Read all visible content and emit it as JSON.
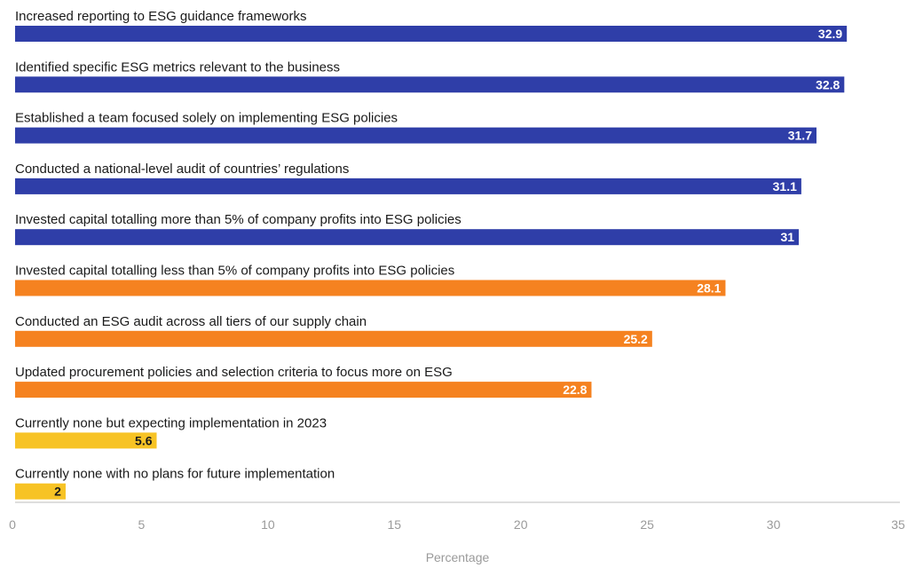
{
  "chart_data": {
    "type": "bar",
    "orientation": "horizontal",
    "categories": [
      "Increased reporting to ESG guidance frameworks",
      "Identified specific ESG metrics relevant to the business",
      "Established a team focused solely on implementing ESG policies",
      "Conducted a national-level audit of countries’ regulations",
      "Invested capital totalling more than 5% of company profits into ESG policies",
      "Invested capital totalling less than 5% of company profits into ESG policies",
      "Conducted an ESG audit across all tiers of our supply chain",
      "Updated procurement policies and selection criteria to focus more on ESG",
      "Currently none but expecting implementation in 2023",
      "Currently none with no plans for future implementation"
    ],
    "values": [
      32.9,
      32.8,
      31.7,
      31.1,
      31,
      28.1,
      25.2,
      22.8,
      5.6,
      2
    ],
    "value_labels": [
      "32.9",
      "32.8",
      "31.7",
      "31.1",
      "31",
      "28.1",
      "25.2",
      "22.8",
      "5.6",
      "2"
    ],
    "bar_colors": [
      "#2f3ea8",
      "#2f3ea8",
      "#2f3ea8",
      "#2f3ea8",
      "#2f3ea8",
      "#f58220",
      "#f58220",
      "#f58220",
      "#f7c325",
      "#f7c325"
    ],
    "value_label_colors": [
      "#ffffff",
      "#ffffff",
      "#ffffff",
      "#ffffff",
      "#ffffff",
      "#ffffff",
      "#ffffff",
      "#ffffff",
      "#1a1a1a",
      "#1a1a1a"
    ],
    "xlabel": "Percentage",
    "xlim": [
      0,
      35
    ],
    "xticks": [
      0,
      5,
      10,
      15,
      20,
      25,
      30,
      35
    ],
    "grid": false,
    "legend": "none",
    "axis_line_color": "#bdbdbd"
  }
}
